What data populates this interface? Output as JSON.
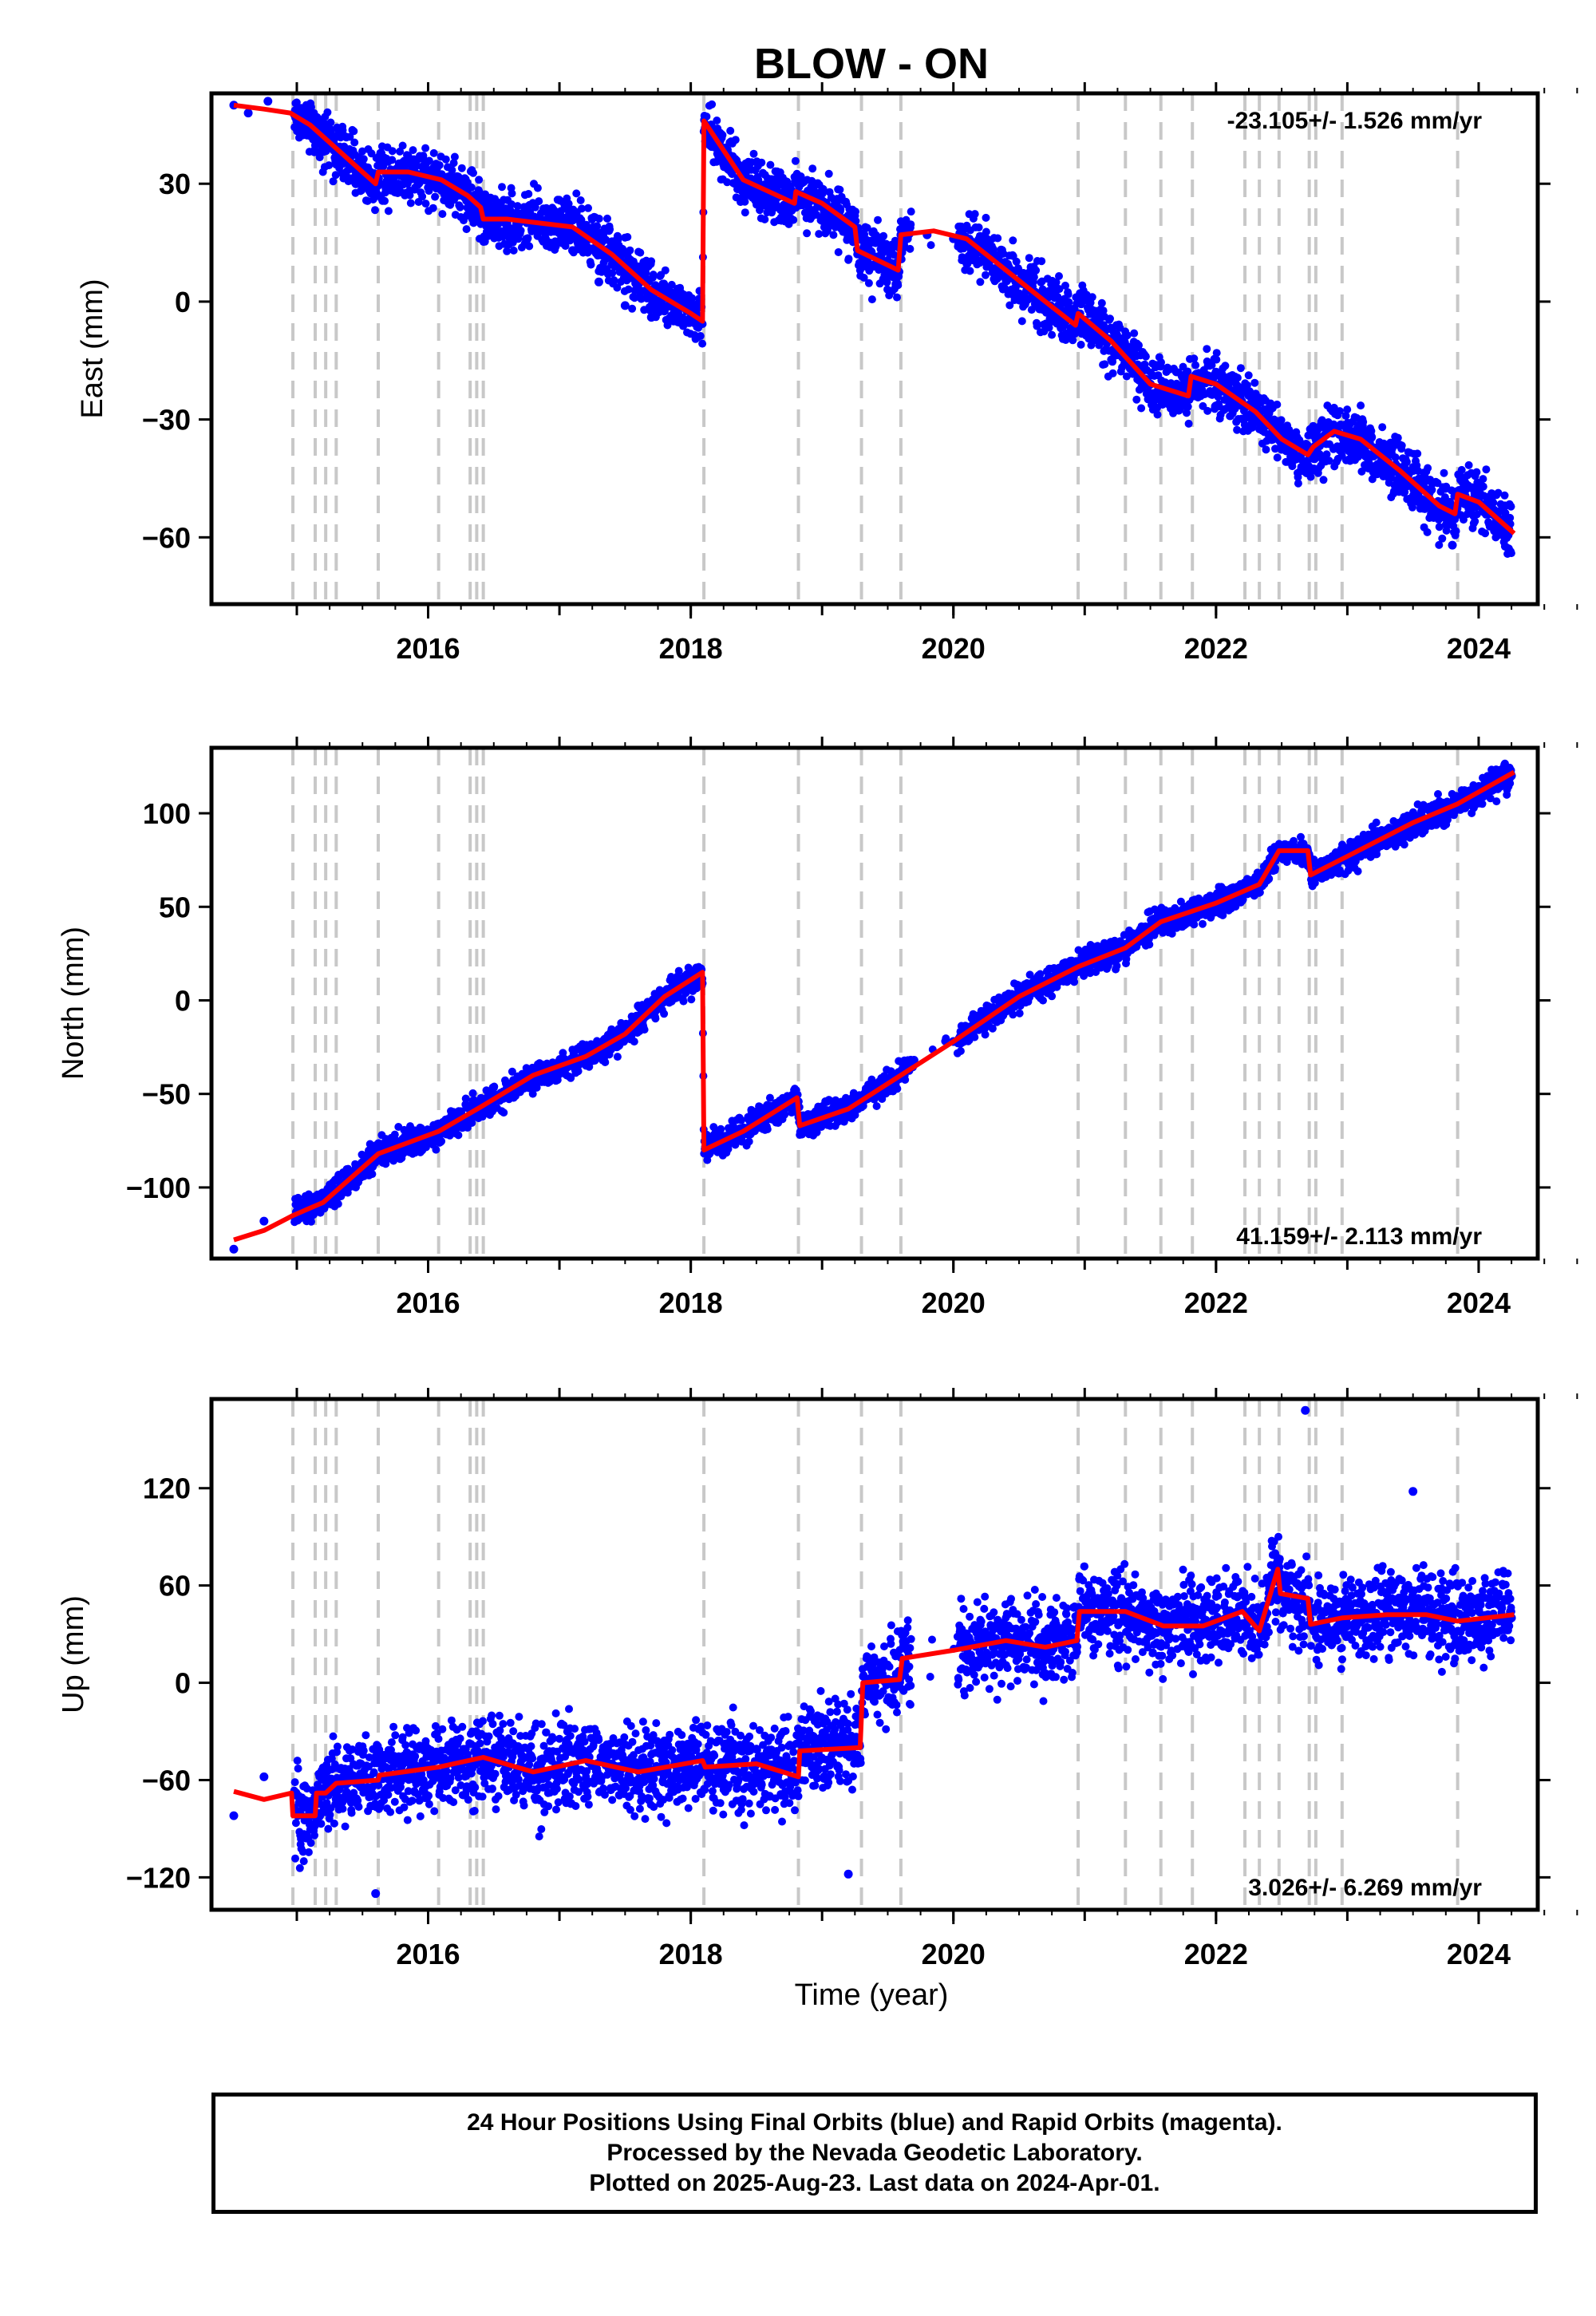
{
  "chart_data": [
    {
      "type": "scatter",
      "panel": "east",
      "title": "BLOW - ON",
      "ylabel": "East (mm)",
      "xlabel": "",
      "xlim": [
        2014.35,
        2024.45
      ],
      "ylim": [
        -77,
        53
      ],
      "xticks": [
        2016,
        2018,
        2020,
        2022,
        2024
      ],
      "yticks": [
        30,
        0,
        -30,
        -60
      ],
      "rate_text": "-23.105+/- 1.526 mm/yr",
      "rate_position": "top-right",
      "series": [
        {
          "name": "Final Orbits (blue)",
          "color": "#0000ff",
          "x": [
            2014.52,
            2014.63,
            2014.78,
            2015.0,
            2015.1,
            2015.2,
            2015.3,
            2015.45,
            2015.6,
            2015.8,
            2016.0,
            2016.15,
            2016.3,
            2016.4,
            2016.6,
            2016.9,
            2017.1,
            2017.3,
            2017.5,
            2017.7,
            2017.9,
            2018.05,
            2018.12,
            2018.2,
            2018.4,
            2018.6,
            2018.8,
            2019.0,
            2019.2,
            2019.3,
            2019.5,
            2019.6,
            2019.8,
            2020.0,
            2020.2,
            2020.5,
            2020.7,
            2020.95,
            2021.1,
            2021.3,
            2021.5,
            2021.8,
            2022.0,
            2022.2,
            2022.4,
            2022.6,
            2022.75,
            2022.9,
            2023.1,
            2023.3,
            2023.5,
            2023.7,
            2023.8,
            2024.0,
            2024.2
          ],
          "y": [
            50,
            48,
            51,
            46,
            43,
            39,
            35,
            30,
            32,
            34,
            33,
            26,
            22,
            21,
            20,
            19,
            13,
            5,
            -1,
            -4,
            -4,
            -9,
            44,
            41,
            30,
            28,
            24,
            21,
            16,
            13,
            10,
            17,
            17,
            16,
            10,
            2,
            -6,
            -5,
            -7,
            -12,
            -21,
            -20,
            -18,
            -23,
            -30,
            -37,
            -40,
            -33,
            -32,
            -37,
            -43,
            -53,
            -62,
            -48,
            -52
          ],
          "mode": "markers"
        },
        {
          "name": "model",
          "color": "#ff0000",
          "x": [
            2014.52,
            2014.75,
            2014.95,
            2015.1,
            2015.3,
            2015.5,
            2015.6,
            2015.62,
            2015.85,
            2016.1,
            2016.3,
            2016.4,
            2016.42,
            2016.6,
            2016.85,
            2017.1,
            2017.4,
            2017.7,
            2018.0,
            2018.09,
            2018.1,
            2018.4,
            2018.79,
            2018.8,
            2019.0,
            2019.25,
            2019.27,
            2019.58,
            2019.6,
            2019.85,
            2020.1,
            2020.4,
            2020.7,
            2020.93,
            2020.95,
            2021.2,
            2021.5,
            2021.79,
            2021.81,
            2022.0,
            2022.3,
            2022.5,
            2022.7,
            2022.74,
            2022.9,
            2023.1,
            2023.4,
            2023.7,
            2023.82,
            2023.84,
            2024.0,
            2024.27
          ],
          "y": [
            50,
            49,
            48,
            45,
            39,
            33,
            30,
            33,
            33,
            31,
            27,
            24,
            21,
            21,
            20,
            19,
            12,
            3,
            -3,
            -5,
            46,
            31,
            25,
            28,
            25,
            19,
            13,
            8,
            17,
            18,
            16,
            8,
            0,
            -6,
            -3,
            -10,
            -21,
            -24,
            -19,
            -21,
            -28,
            -35,
            -39,
            -37,
            -33,
            -35,
            -43,
            -52,
            -54,
            -49,
            -51,
            -59
          ],
          "mode": "line"
        }
      ],
      "event_lines_x": [
        2014.97,
        2015.14,
        2015.22,
        2015.3,
        2015.62,
        2016.08,
        2016.32,
        2016.37,
        2016.42,
        2018.1,
        2018.82,
        2019.3,
        2019.6,
        2020.95,
        2021.31,
        2021.58,
        2021.82,
        2022.22,
        2022.33,
        2022.48,
        2022.71,
        2022.76,
        2022.96,
        2023.84
      ]
    },
    {
      "type": "scatter",
      "panel": "north",
      "ylabel": "North (mm)",
      "xlabel": "",
      "xlim": [
        2014.35,
        2024.45
      ],
      "ylim": [
        -138,
        135
      ],
      "xticks": [
        2016,
        2018,
        2020,
        2022,
        2024
      ],
      "yticks": [
        100,
        50,
        0,
        -50,
        -100
      ],
      "rate_text": "41.159+/- 2.113 mm/yr",
      "rate_position": "bottom-right",
      "series": [
        {
          "name": "Final Orbits (blue)",
          "color": "#0000ff",
          "x": [
            2014.52,
            2014.75,
            2015.0,
            2015.2,
            2015.4,
            2015.6,
            2015.9,
            2016.2,
            2016.4,
            2016.7,
            2017.0,
            2017.3,
            2017.6,
            2017.9,
            2018.05,
            2018.12,
            2018.3,
            2018.6,
            2018.85,
            2019.1,
            2019.4,
            2019.7,
            2020.0,
            2020.3,
            2020.6,
            2020.9,
            2021.2,
            2021.5,
            2021.8,
            2022.1,
            2022.4,
            2022.55,
            2022.7,
            2022.9,
            2023.2,
            2023.5,
            2023.8,
            2024.1,
            2024.25
          ],
          "y": [
            -133,
            -118,
            -115,
            -108,
            -92,
            -80,
            -75,
            -68,
            -58,
            -42,
            -35,
            -25,
            -3,
            5,
            12,
            -80,
            -70,
            -58,
            -65,
            -58,
            -45,
            -32,
            -22,
            -8,
            5,
            15,
            25,
            38,
            45,
            52,
            65,
            82,
            72,
            72,
            85,
            98,
            105,
            115,
            120
          ],
          "mode": "markers"
        },
        {
          "name": "model",
          "color": "#ff0000",
          "x": [
            2014.52,
            2014.75,
            2014.97,
            2015.2,
            2015.62,
            2016.08,
            2016.4,
            2016.8,
            2017.2,
            2017.5,
            2017.8,
            2018.09,
            2018.1,
            2018.4,
            2018.81,
            2018.83,
            2019.2,
            2019.6,
            2020.0,
            2020.5,
            2020.95,
            2021.31,
            2021.58,
            2022.0,
            2022.33,
            2022.48,
            2022.7,
            2022.72,
            2023.0,
            2023.5,
            2023.84,
            2024.27
          ],
          "y": [
            -128,
            -123,
            -115,
            -108,
            -82,
            -70,
            -57,
            -40,
            -30,
            -18,
            2,
            15,
            -80,
            -70,
            -52,
            -67,
            -58,
            -40,
            -22,
            2,
            18,
            28,
            42,
            52,
            62,
            80,
            80,
            67,
            77,
            95,
            105,
            122
          ],
          "mode": "line"
        }
      ],
      "event_lines_x": [
        2014.97,
        2015.14,
        2015.22,
        2015.3,
        2015.62,
        2016.08,
        2016.32,
        2016.37,
        2016.42,
        2018.1,
        2018.82,
        2019.3,
        2019.6,
        2020.95,
        2021.31,
        2021.58,
        2021.82,
        2022.22,
        2022.33,
        2022.48,
        2022.71,
        2022.76,
        2022.96,
        2023.84
      ]
    },
    {
      "type": "scatter",
      "panel": "up",
      "ylabel": "Up (mm)",
      "xlabel": "Time (year)",
      "xlim": [
        2014.35,
        2024.45
      ],
      "ylim": [
        -140,
        175
      ],
      "xticks": [
        2016,
        2018,
        2020,
        2022,
        2024
      ],
      "yticks": [
        120,
        60,
        0,
        -60,
        -120
      ],
      "rate_text": "3.026+/- 6.269 mm/yr",
      "rate_position": "bottom-right",
      "series": [
        {
          "name": "Final Orbits (blue)",
          "color": "#0000ff",
          "x": [
            2014.52,
            2014.75,
            2015.0,
            2015.3,
            2015.6,
            2015.9,
            2016.2,
            2016.5,
            2016.8,
            2017.1,
            2017.4,
            2017.7,
            2018.0,
            2018.3,
            2018.6,
            2018.9,
            2019.2,
            2019.35,
            2019.5,
            2019.65,
            2020.1,
            2020.4,
            2020.7,
            2021.0,
            2021.3,
            2021.6,
            2021.9,
            2022.2,
            2022.45,
            2022.6,
            2022.68,
            2022.8,
            2023.0,
            2023.3,
            2023.5,
            2023.8,
            2024.0,
            2024.25
          ],
          "y": [
            -82,
            -58,
            -80,
            -68,
            -130,
            -60,
            -55,
            -45,
            -60,
            -52,
            -50,
            -60,
            -55,
            -50,
            -70,
            -45,
            -118,
            10,
            0,
            20,
            25,
            30,
            15,
            40,
            40,
            35,
            30,
            45,
            70,
            50,
            168,
            40,
            35,
            50,
            118,
            40,
            45,
            40
          ],
          "mode": "markers"
        },
        {
          "name": "model",
          "color": "#ff0000",
          "x": [
            2014.52,
            2014.75,
            2014.96,
            2014.97,
            2015.14,
            2015.15,
            2015.22,
            2015.3,
            2015.62,
            2015.63,
            2016.08,
            2016.42,
            2016.8,
            2017.2,
            2017.6,
            2018.09,
            2018.11,
            2018.5,
            2018.82,
            2018.83,
            2019.29,
            2019.31,
            2019.59,
            2019.61,
            2020.0,
            2020.4,
            2020.7,
            2020.94,
            2020.96,
            2021.31,
            2021.6,
            2021.9,
            2022.2,
            2022.33,
            2022.47,
            2022.49,
            2022.7,
            2022.72,
            2022.96,
            2023.3,
            2023.6,
            2023.84,
            2024.27
          ],
          "y": [
            -67,
            -72,
            -68,
            -82,
            -82,
            -68,
            -68,
            -62,
            -60,
            -57,
            -52,
            -46,
            -55,
            -48,
            -55,
            -48,
            -52,
            -50,
            -58,
            -42,
            -40,
            0,
            2,
            15,
            20,
            26,
            22,
            26,
            44,
            44,
            35,
            35,
            44,
            32,
            70,
            55,
            52,
            36,
            40,
            42,
            42,
            38,
            42
          ],
          "mode": "line"
        }
      ],
      "event_lines_x": [
        2014.97,
        2015.14,
        2015.22,
        2015.3,
        2015.62,
        2016.08,
        2016.32,
        2016.37,
        2016.42,
        2018.1,
        2018.82,
        2019.3,
        2019.6,
        2020.95,
        2021.31,
        2021.58,
        2021.82,
        2022.22,
        2022.33,
        2022.48,
        2022.71,
        2022.76,
        2022.96,
        2023.84
      ]
    }
  ],
  "footer": {
    "line1": "24 Hour Positions Using Final Orbits (blue) and Rapid Orbits (magenta).",
    "line2": "Processed by the Nevada Geodetic Laboratory.",
    "line3": "Plotted on 2025-Aug-23. Last data on 2024-Apr-01."
  },
  "colors": {
    "data": "#0000ff",
    "model": "#ff0000",
    "events": "#c8c8c8"
  }
}
